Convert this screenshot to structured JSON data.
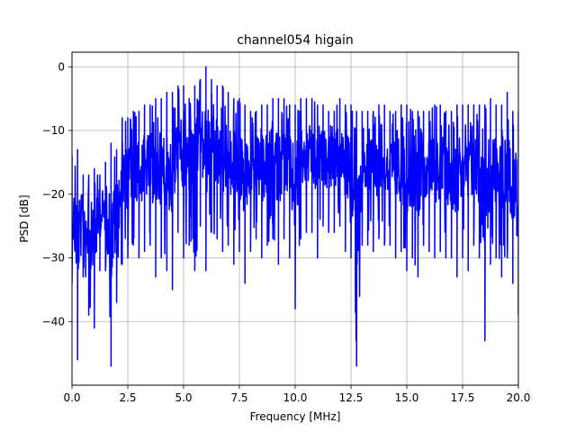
{
  "chart_data": {
    "type": "line",
    "title": "channel054 higain",
    "xlabel": "Frequency [MHz]",
    "ylabel": "PSD [dB]",
    "xlim": [
      0,
      20
    ],
    "ylim": [
      -50,
      2.3
    ],
    "x_ticks": [
      "0.0",
      "2.5",
      "5.0",
      "7.5",
      "10.0",
      "12.5",
      "15.0",
      "17.5",
      "20.0"
    ],
    "y_ticks": [
      "0",
      "−10",
      "−20",
      "−30",
      "−40"
    ],
    "grid": true,
    "series": [
      {
        "color": "#0000ff",
        "x": [
          0.0,
          0.25,
          0.5,
          0.75,
          1.0,
          1.25,
          1.5,
          1.75,
          2.0,
          2.25,
          2.5,
          2.75,
          3.0,
          3.25,
          3.5,
          3.75,
          4.0,
          4.25,
          4.5,
          4.75,
          5.0,
          5.25,
          5.5,
          5.75,
          6.0,
          6.25,
          6.5,
          6.75,
          7.0,
          7.25,
          7.5,
          7.75,
          8.0,
          8.25,
          8.5,
          8.75,
          9.0,
          9.25,
          9.5,
          9.75,
          10.0,
          10.25,
          10.5,
          10.75,
          11.0,
          11.25,
          11.5,
          11.75,
          12.0,
          12.25,
          12.5,
          12.75,
          13.0,
          13.25,
          13.5,
          13.75,
          14.0,
          14.25,
          14.5,
          14.75,
          15.0,
          15.25,
          15.5,
          15.75,
          16.0,
          16.25,
          16.5,
          16.75,
          17.0,
          17.25,
          17.5,
          17.75,
          18.0,
          18.25,
          18.5,
          18.75,
          19.0,
          19.25,
          19.5,
          19.75,
          20.0
        ],
        "upper": [
          -14,
          -13,
          -17,
          -17,
          -16,
          -17,
          -15,
          -12,
          -13,
          -8,
          -8,
          -7,
          -7,
          -6,
          -6,
          -5,
          -5,
          -4,
          -4,
          -3,
          -3,
          -5,
          -3,
          -2,
          0,
          -2,
          -3,
          -3,
          -4,
          -5,
          -5,
          -6,
          -7,
          -7,
          -6,
          -6,
          -5,
          -5,
          -5,
          -6,
          -6,
          -5,
          -5,
          -5,
          -6,
          -6,
          -7,
          -7,
          -5,
          -6,
          -6,
          -7,
          -7,
          -7,
          -7,
          -6,
          -6,
          -7,
          -7,
          -6,
          -6,
          -7,
          -7,
          -7,
          -7,
          -6,
          -6,
          -7,
          -7,
          -6,
          -6,
          -6,
          -6,
          -6,
          -6,
          -5,
          -6,
          -6,
          -4,
          -7,
          -7
        ],
        "lower": [
          -34,
          -46,
          -33,
          -39,
          -41,
          -32,
          -32,
          -47,
          -37,
          -31,
          -30,
          -28,
          -30,
          -29,
          -28,
          -33,
          -30,
          -32,
          -35,
          -26,
          -30,
          -28,
          -32,
          -25,
          -32,
          -26,
          -27,
          -29,
          -28,
          -31,
          -29,
          -34,
          -29,
          -27,
          -30,
          -28,
          -27,
          -31,
          -27,
          -30,
          -38,
          -27,
          -26,
          -26,
          -30,
          -25,
          -26,
          -26,
          -25,
          -29,
          -30,
          -47,
          -28,
          -28,
          -29,
          -27,
          -28,
          -28,
          -30,
          -29,
          -32,
          -30,
          -33,
          -28,
          -29,
          -30,
          -29,
          -30,
          -30,
          -33,
          -30,
          -32,
          -28,
          -30,
          -43,
          -31,
          -30,
          -33,
          -30,
          -34,
          -39
        ]
      }
    ]
  }
}
